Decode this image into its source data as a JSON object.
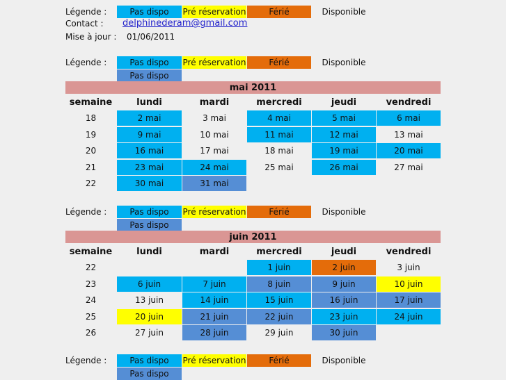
{
  "legends": [
    {
      "label": "Légende :",
      "items": [
        {
          "text": "Pas dispo",
          "color": "#00b0f0"
        },
        {
          "text": "Pré réservation",
          "color": "#ffff00"
        },
        {
          "text": "Férié",
          "color": "#e46c0a"
        },
        {
          "text": "Disponible"
        }
      ]
    },
    {
      "label": "Légende :",
      "items": [
        {
          "text": "Pas dispo",
          "color": "#00b0f0"
        },
        {
          "text": "Pré réservation",
          "color": "#ffff00"
        },
        {
          "text": "Férié",
          "color": "#e46c0a"
        },
        {
          "text": "Disponible"
        },
        {
          "text": "Pas dispo",
          "color": "#558ed5"
        }
      ]
    },
    {
      "label": "Légende :",
      "items": [
        {
          "text": "Pas dispo",
          "color": "#00b0f0"
        },
        {
          "text": "Pré réservation",
          "color": "#ffff00"
        },
        {
          "text": "Férié",
          "color": "#e46c0a"
        },
        {
          "text": "Disponible"
        },
        {
          "text": "Pas dispo",
          "color": "#558ed5"
        }
      ]
    },
    {
      "label": "Légende :",
      "items": [
        {
          "text": "Pas dispo",
          "color": "#00b0f0"
        },
        {
          "text": "Pré réservation",
          "color": "#ffff00"
        },
        {
          "text": "Férié",
          "color": "#e46c0a"
        },
        {
          "text": "Disponible"
        },
        {
          "text": "Pas dispo",
          "color": "#558ed5"
        }
      ]
    }
  ],
  "contact": {
    "label": "Contact :",
    "email": "delphinederam@gmail.com"
  },
  "update": {
    "label": "Mise à jour  :",
    "date": "01/06/2011"
  },
  "months": [
    {
      "title": "mai 2011",
      "header": [
        "semaine",
        "lundi",
        "mardi",
        "mercredi",
        "jeudi",
        "vendredi"
      ],
      "title_color": "#da9694",
      "rows": [
        {
          "week": "18",
          "cells": [
            {
              "text": "2 mai",
              "color": "#00b0f0"
            },
            {
              "text": "3 mai"
            },
            {
              "text": "4 mai",
              "color": "#00b0f0"
            },
            {
              "text": "5 mai",
              "color": "#00b0f0"
            },
            {
              "text": "6 mai",
              "color": "#00b0f0"
            }
          ]
        },
        {
          "week": "19",
          "cells": [
            {
              "text": "9 mai",
              "color": "#00b0f0"
            },
            {
              "text": "10 mai"
            },
            {
              "text": "11 mai",
              "color": "#00b0f0"
            },
            {
              "text": "12 mai",
              "color": "#00b0f0"
            },
            {
              "text": "13 mai"
            }
          ]
        },
        {
          "week": "20",
          "cells": [
            {
              "text": "16 mai",
              "color": "#00b0f0"
            },
            {
              "text": "17 mai"
            },
            {
              "text": "18 mai"
            },
            {
              "text": "19 mai",
              "color": "#00b0f0"
            },
            {
              "text": "20 mai",
              "color": "#00b0f0"
            }
          ]
        },
        {
          "week": "21",
          "cells": [
            {
              "text": "23 mai",
              "color": "#00b0f0"
            },
            {
              "text": "24 mai",
              "color": "#00b0f0"
            },
            {
              "text": "25 mai"
            },
            {
              "text": "26 mai",
              "color": "#00b0f0"
            },
            {
              "text": "27 mai"
            }
          ]
        },
        {
          "week": "22",
          "cells": [
            {
              "text": "30 mai",
              "color": "#00b0f0"
            },
            {
              "text": "31 mai",
              "color": "#558ed5"
            },
            null,
            null,
            null
          ]
        }
      ]
    },
    {
      "title": "juin 2011",
      "header": [
        "semaine",
        "lundi",
        "mardi",
        "mercredi",
        "jeudi",
        "vendredi"
      ],
      "title_color": "#da9694",
      "rows": [
        {
          "week": "22",
          "cells": [
            null,
            null,
            {
              "text": "1 juin",
              "color": "#00b0f0"
            },
            {
              "text": "2 juin",
              "color": "#e46c0a"
            },
            {
              "text": "3 juin"
            }
          ]
        },
        {
          "week": "23",
          "cells": [
            {
              "text": "6 juin",
              "color": "#00b0f0"
            },
            {
              "text": "7 juin",
              "color": "#00b0f0"
            },
            {
              "text": "8 juin",
              "color": "#558ed5"
            },
            {
              "text": "9 juin",
              "color": "#558ed5"
            },
            {
              "text": "10 juin",
              "color": "#ffff00"
            }
          ]
        },
        {
          "week": "24",
          "cells": [
            {
              "text": "13 juin"
            },
            {
              "text": "14 juin",
              "color": "#00b0f0"
            },
            {
              "text": "15 juin",
              "color": "#00b0f0"
            },
            {
              "text": "16 juin",
              "color": "#558ed5"
            },
            {
              "text": "17 juin",
              "color": "#558ed5"
            }
          ]
        },
        {
          "week": "25",
          "cells": [
            {
              "text": "20 juin",
              "color": "#ffff00"
            },
            {
              "text": "21 juin",
              "color": "#558ed5"
            },
            {
              "text": "22 juin",
              "color": "#558ed5"
            },
            {
              "text": "23 juin",
              "color": "#00b0f0"
            },
            {
              "text": "24 juin",
              "color": "#00b0f0"
            }
          ]
        },
        {
          "week": "26",
          "cells": [
            {
              "text": "27 juin"
            },
            {
              "text": "28 juin",
              "color": "#558ed5"
            },
            {
              "text": "29 juin"
            },
            {
              "text": "30 juin",
              "color": "#558ed5"
            }
          ]
        }
      ]
    }
  ]
}
